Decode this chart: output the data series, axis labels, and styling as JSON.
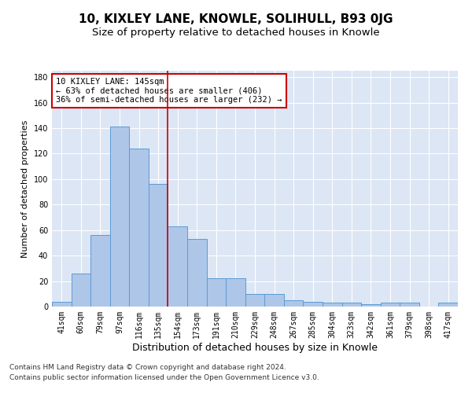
{
  "title": "10, KIXLEY LANE, KNOWLE, SOLIHULL, B93 0JG",
  "subtitle": "Size of property relative to detached houses in Knowle",
  "xlabel": "Distribution of detached houses by size in Knowle",
  "ylabel": "Number of detached properties",
  "categories": [
    "41sqm",
    "60sqm",
    "79sqm",
    "97sqm",
    "116sqm",
    "135sqm",
    "154sqm",
    "173sqm",
    "191sqm",
    "210sqm",
    "229sqm",
    "248sqm",
    "267sqm",
    "285sqm",
    "304sqm",
    "323sqm",
    "342sqm",
    "361sqm",
    "379sqm",
    "398sqm",
    "417sqm"
  ],
  "values": [
    4,
    26,
    56,
    141,
    124,
    96,
    63,
    53,
    22,
    22,
    10,
    10,
    5,
    4,
    3,
    3,
    2,
    3,
    3,
    0,
    3
  ],
  "bar_color": "#aec6e8",
  "bar_edge_color": "#5b9bd5",
  "vline_x": 5.5,
  "vline_color": "#cc0000",
  "annotation_text": "10 KIXLEY LANE: 145sqm\n← 63% of detached houses are smaller (406)\n36% of semi-detached houses are larger (232) →",
  "annotation_box_edge": "#cc0000",
  "ylim": [
    0,
    185
  ],
  "yticks": [
    0,
    20,
    40,
    60,
    80,
    100,
    120,
    140,
    160,
    180
  ],
  "plot_bg_color": "#dce6f5",
  "footer_line1": "Contains HM Land Registry data © Crown copyright and database right 2024.",
  "footer_line2": "Contains public sector information licensed under the Open Government Licence v3.0.",
  "title_fontsize": 11,
  "subtitle_fontsize": 9.5,
  "xlabel_fontsize": 9,
  "ylabel_fontsize": 8,
  "tick_fontsize": 7,
  "annotation_fontsize": 7.5,
  "footer_fontsize": 6.5
}
